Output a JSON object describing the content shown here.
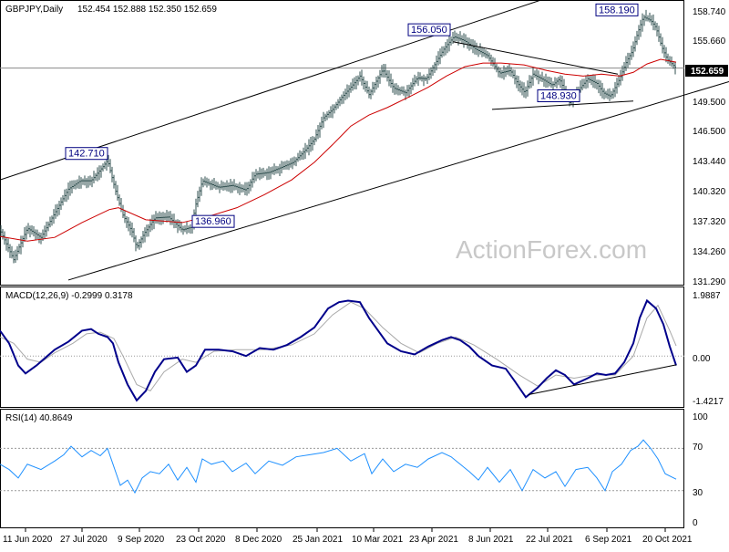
{
  "chart_data": [
    {
      "type": "candlestick",
      "header": {
        "symbol": "GBPJPY,Daily",
        "ohlc": "152.454 152.888 152.350 152.659"
      },
      "watermark": "ActionForex.com",
      "ylim": [
        129.5,
        159.8
      ],
      "y_ticks": [
        "158.740",
        "155.660",
        "152.659",
        "149.500",
        "146.500",
        "143.440",
        "140.320",
        "137.320",
        "134.260",
        "131.290"
      ],
      "last_price_label": "152.659",
      "price_path": [
        [
          0,
          135.2
        ],
        [
          15,
          132.0
        ],
        [
          30,
          135.4
        ],
        [
          45,
          134.4
        ],
        [
          60,
          137.0
        ],
        [
          75,
          139.6
        ],
        [
          88,
          140.5
        ],
        [
          100,
          140.5
        ],
        [
          112,
          141.9
        ],
        [
          118,
          142.71
        ],
        [
          128,
          139.0
        ],
        [
          135,
          136.8
        ],
        [
          145,
          135.0
        ],
        [
          150,
          133.3
        ],
        [
          158,
          134.8
        ],
        [
          170,
          136.5
        ],
        [
          185,
          136.6
        ],
        [
          200,
          135.2
        ],
        [
          210,
          135.5
        ],
        [
          215,
          138.0
        ],
        [
          222,
          140.5
        ],
        [
          240,
          139.8
        ],
        [
          255,
          140.0
        ],
        [
          270,
          139.5
        ],
        [
          280,
          141.2
        ],
        [
          295,
          141.4
        ],
        [
          310,
          142.0
        ],
        [
          322,
          142.5
        ],
        [
          335,
          143.8
        ],
        [
          345,
          145.0
        ],
        [
          355,
          147.3
        ],
        [
          365,
          148.2
        ],
        [
          375,
          149.5
        ],
        [
          385,
          150.6
        ],
        [
          395,
          151.8
        ],
        [
          405,
          149.8
        ],
        [
          420,
          152.5
        ],
        [
          432,
          150.5
        ],
        [
          445,
          150.0
        ],
        [
          458,
          151.6
        ],
        [
          468,
          151.5
        ],
        [
          478,
          153.2
        ],
        [
          487,
          154.7
        ],
        [
          498,
          156.05
        ],
        [
          510,
          155.6
        ],
        [
          522,
          154.7
        ],
        [
          535,
          154.0
        ],
        [
          548,
          152.1
        ],
        [
          560,
          152.4
        ],
        [
          568,
          151.0
        ],
        [
          576,
          150.0
        ],
        [
          585,
          152.0
        ],
        [
          598,
          151.3
        ],
        [
          606,
          150.8
        ],
        [
          614,
          151.5
        ],
        [
          625,
          148.93
        ],
        [
          635,
          150.3
        ],
        [
          645,
          151.5
        ],
        [
          655,
          151.0
        ],
        [
          662,
          150.0
        ],
        [
          670,
          149.6
        ],
        [
          680,
          151.5
        ],
        [
          688,
          153.5
        ],
        [
          694,
          154.5
        ],
        [
          700,
          156.5
        ],
        [
          706,
          158.19
        ],
        [
          714,
          157.8
        ],
        [
          720,
          157.0
        ],
        [
          726,
          155.0
        ],
        [
          732,
          153.6
        ],
        [
          742,
          152.66
        ]
      ],
      "ma_path": [
        [
          0,
          134.5
        ],
        [
          30,
          134.0
        ],
        [
          60,
          134.4
        ],
        [
          90,
          136.0
        ],
        [
          120,
          137.4
        ],
        [
          130,
          137.6
        ],
        [
          160,
          136.3
        ],
        [
          200,
          136.0
        ],
        [
          230,
          136.7
        ],
        [
          260,
          137.6
        ],
        [
          290,
          139.0
        ],
        [
          320,
          140.6
        ],
        [
          345,
          142.5
        ],
        [
          365,
          144.4
        ],
        [
          385,
          146.4
        ],
        [
          405,
          147.6
        ],
        [
          425,
          148.4
        ],
        [
          450,
          149.6
        ],
        [
          470,
          150.6
        ],
        [
          490,
          151.8
        ],
        [
          510,
          152.8
        ],
        [
          530,
          153.2
        ],
        [
          550,
          153.2
        ],
        [
          575,
          153.0
        ],
        [
          600,
          152.4
        ],
        [
          620,
          152.0
        ],
        [
          640,
          151.8
        ],
        [
          660,
          152.0
        ],
        [
          680,
          151.8
        ],
        [
          695,
          152.2
        ],
        [
          710,
          153.1
        ],
        [
          725,
          153.6
        ],
        [
          742,
          153.3
        ]
      ],
      "trendlines": [
        {
          "name": "channel-upper",
          "points": [
            [
              0,
              140.6
            ],
            [
              600,
              160.2
            ]
          ]
        },
        {
          "name": "channel-lower",
          "points": [
            [
              75,
              129.8
            ],
            [
              800,
              151.2
            ]
          ]
        },
        {
          "name": "triangle-upper",
          "points": [
            [
              497,
              155.5
            ],
            [
              678,
              152.0
            ]
          ]
        },
        {
          "name": "triangle-lower",
          "points": [
            [
              540,
              148.2
            ],
            [
              695,
              149.1
            ]
          ]
        },
        {
          "name": "horizontal-level",
          "points": [
            [
              0,
              152.659
            ],
            [
              752,
              152.659
            ]
          ]
        }
      ],
      "annotations": [
        {
          "text": "142.710",
          "x": 118,
          "price": 142.71,
          "side": "left-above"
        },
        {
          "text": "136.960",
          "x": 224,
          "price": 136.96,
          "side": "right-below"
        },
        {
          "text": "156.050",
          "x": 494,
          "price": 156.05,
          "side": "left-above"
        },
        {
          "text": "158.190",
          "x": 700,
          "price": 158.19,
          "side": "left-above"
        },
        {
          "text": "148.930",
          "x": 613,
          "price": 148.93,
          "side": "center-above"
        }
      ]
    },
    {
      "type": "line",
      "header": "MACD(12,26,9) -0.2999 0.3178",
      "ylim": [
        -1.55,
        2.08
      ],
      "y_ticks": [
        "1.9887",
        "0.00",
        "-1.4217"
      ],
      "zero_label": "0.00",
      "macd_path": [
        [
          0,
          0.8
        ],
        [
          10,
          0.4
        ],
        [
          20,
          -0.3
        ],
        [
          28,
          -0.55
        ],
        [
          40,
          -0.3
        ],
        [
          50,
          -0.05
        ],
        [
          60,
          0.2
        ],
        [
          75,
          0.45
        ],
        [
          90,
          0.8
        ],
        [
          100,
          0.85
        ],
        [
          108,
          0.7
        ],
        [
          118,
          0.6
        ],
        [
          124,
          0.4
        ],
        [
          130,
          -0.2
        ],
        [
          140,
          -0.9
        ],
        [
          150,
          -1.4
        ],
        [
          160,
          -1.1
        ],
        [
          170,
          -0.5
        ],
        [
          180,
          -0.1
        ],
        [
          195,
          -0.05
        ],
        [
          205,
          -0.5
        ],
        [
          215,
          -0.3
        ],
        [
          225,
          0.2
        ],
        [
          240,
          0.2
        ],
        [
          255,
          0.15
        ],
        [
          270,
          0.0
        ],
        [
          285,
          0.25
        ],
        [
          300,
          0.2
        ],
        [
          315,
          0.35
        ],
        [
          330,
          0.6
        ],
        [
          345,
          0.9
        ],
        [
          360,
          1.5
        ],
        [
          372,
          1.7
        ],
        [
          382,
          1.75
        ],
        [
          395,
          1.7
        ],
        [
          405,
          1.2
        ],
        [
          415,
          0.8
        ],
        [
          425,
          0.4
        ],
        [
          440,
          0.15
        ],
        [
          455,
          0.05
        ],
        [
          470,
          0.3
        ],
        [
          485,
          0.5
        ],
        [
          495,
          0.6
        ],
        [
          505,
          0.5
        ],
        [
          515,
          0.3
        ],
        [
          525,
          0.0
        ],
        [
          540,
          -0.3
        ],
        [
          555,
          -0.4
        ],
        [
          565,
          -0.8
        ],
        [
          577,
          -1.3
        ],
        [
          590,
          -1.0
        ],
        [
          600,
          -0.7
        ],
        [
          610,
          -0.45
        ],
        [
          620,
          -0.6
        ],
        [
          630,
          -0.9
        ],
        [
          645,
          -0.7
        ],
        [
          655,
          -0.55
        ],
        [
          665,
          -0.6
        ],
        [
          675,
          -0.55
        ],
        [
          685,
          -0.2
        ],
        [
          695,
          0.4
        ],
        [
          702,
          1.2
        ],
        [
          710,
          1.75
        ],
        [
          720,
          1.5
        ],
        [
          728,
          1.0
        ],
        [
          735,
          0.3
        ],
        [
          742,
          -0.3
        ]
      ],
      "signal_path": [
        [
          0,
          0.6
        ],
        [
          15,
          0.4
        ],
        [
          30,
          -0.1
        ],
        [
          45,
          -0.2
        ],
        [
          60,
          0.1
        ],
        [
          80,
          0.4
        ],
        [
          95,
          0.7
        ],
        [
          110,
          0.75
        ],
        [
          125,
          0.55
        ],
        [
          135,
          0.0
        ],
        [
          150,
          -0.9
        ],
        [
          165,
          -1.1
        ],
        [
          180,
          -0.5
        ],
        [
          200,
          -0.1
        ],
        [
          215,
          -0.2
        ],
        [
          235,
          0.15
        ],
        [
          260,
          0.2
        ],
        [
          290,
          0.2
        ],
        [
          320,
          0.35
        ],
        [
          345,
          0.7
        ],
        [
          365,
          1.3
        ],
        [
          385,
          1.7
        ],
        [
          400,
          1.5
        ],
        [
          420,
          0.9
        ],
        [
          440,
          0.4
        ],
        [
          460,
          0.1
        ],
        [
          480,
          0.4
        ],
        [
          500,
          0.6
        ],
        [
          520,
          0.35
        ],
        [
          545,
          -0.1
        ],
        [
          570,
          -0.6
        ],
        [
          590,
          -0.95
        ],
        [
          610,
          -0.6
        ],
        [
          630,
          -0.7
        ],
        [
          650,
          -0.6
        ],
        [
          675,
          -0.6
        ],
        [
          695,
          0.0
        ],
        [
          710,
          1.2
        ],
        [
          722,
          1.6
        ],
        [
          735,
          0.8
        ],
        [
          742,
          0.32
        ]
      ],
      "trendline": [
        [
          580,
          -1.22
        ],
        [
          742,
          -0.28
        ]
      ]
    },
    {
      "type": "line",
      "header": "RSI(14) 40.8649",
      "ylim": [
        -3,
        104
      ],
      "y_ticks": [
        "100",
        "70",
        "30",
        "0"
      ],
      "rsi_path": [
        [
          0,
          55
        ],
        [
          10,
          50
        ],
        [
          20,
          42
        ],
        [
          30,
          55
        ],
        [
          45,
          50
        ],
        [
          60,
          58
        ],
        [
          70,
          64
        ],
        [
          78,
          72
        ],
        [
          90,
          62
        ],
        [
          100,
          68
        ],
        [
          110,
          63
        ],
        [
          118,
          70
        ],
        [
          124,
          55
        ],
        [
          132,
          35
        ],
        [
          140,
          40
        ],
        [
          148,
          28
        ],
        [
          156,
          42
        ],
        [
          165,
          48
        ],
        [
          175,
          46
        ],
        [
          185,
          55
        ],
        [
          195,
          40
        ],
        [
          205,
          52
        ],
        [
          215,
          38
        ],
        [
          222,
          60
        ],
        [
          232,
          55
        ],
        [
          245,
          58
        ],
        [
          255,
          48
        ],
        [
          270,
          56
        ],
        [
          280,
          46
        ],
        [
          295,
          58
        ],
        [
          310,
          54
        ],
        [
          325,
          62
        ],
        [
          340,
          64
        ],
        [
          355,
          66
        ],
        [
          370,
          70
        ],
        [
          385,
          58
        ],
        [
          400,
          65
        ],
        [
          408,
          46
        ],
        [
          420,
          60
        ],
        [
          432,
          48
        ],
        [
          445,
          55
        ],
        [
          458,
          52
        ],
        [
          470,
          60
        ],
        [
          485,
          66
        ],
        [
          495,
          62
        ],
        [
          505,
          55
        ],
        [
          515,
          48
        ],
        [
          525,
          40
        ],
        [
          535,
          52
        ],
        [
          548,
          38
        ],
        [
          560,
          50
        ],
        [
          573,
          30
        ],
        [
          585,
          50
        ],
        [
          598,
          42
        ],
        [
          610,
          48
        ],
        [
          620,
          34
        ],
        [
          632,
          50
        ],
        [
          645,
          52
        ],
        [
          655,
          42
        ],
        [
          664,
          30
        ],
        [
          672,
          48
        ],
        [
          682,
          55
        ],
        [
          692,
          68
        ],
        [
          700,
          72
        ],
        [
          706,
          78
        ],
        [
          714,
          70
        ],
        [
          722,
          60
        ],
        [
          730,
          46
        ],
        [
          742,
          40.86
        ]
      ],
      "levels": [
        70,
        30
      ]
    }
  ],
  "x_axis": {
    "labels": [
      {
        "text": "11 Jun 2020",
        "x": 28
      },
      {
        "text": "27 Jul 2020",
        "x": 90
      },
      {
        "text": "9 Sep 2020",
        "x": 153
      },
      {
        "text": "23 Oct 2020",
        "x": 218
      },
      {
        "text": "8 Dec 2020",
        "x": 282
      },
      {
        "text": "25 Jan 2021",
        "x": 348
      },
      {
        "text": "10 Mar 2021",
        "x": 410
      },
      {
        "text": "23 Apr 2021",
        "x": 474
      },
      {
        "text": "8 Jun 2021",
        "x": 538
      },
      {
        "text": "22 Jul 2021",
        "x": 601
      },
      {
        "text": "6 Sep 2021",
        "x": 666
      },
      {
        "text": "20 Oct 2021",
        "x": 730
      }
    ]
  },
  "colors": {
    "price": "#2f4f4f",
    "ma": "#cc0000",
    "trendline": "#000000",
    "label_box": "#000080",
    "macd": "#00008b",
    "signal": "#a9a9a9",
    "rsi": "#1e90ff",
    "grid_dots": "#999999",
    "last_price_box": "#000000",
    "last_price_text": "#ffffff",
    "watermark": "#c8c8c8"
  }
}
